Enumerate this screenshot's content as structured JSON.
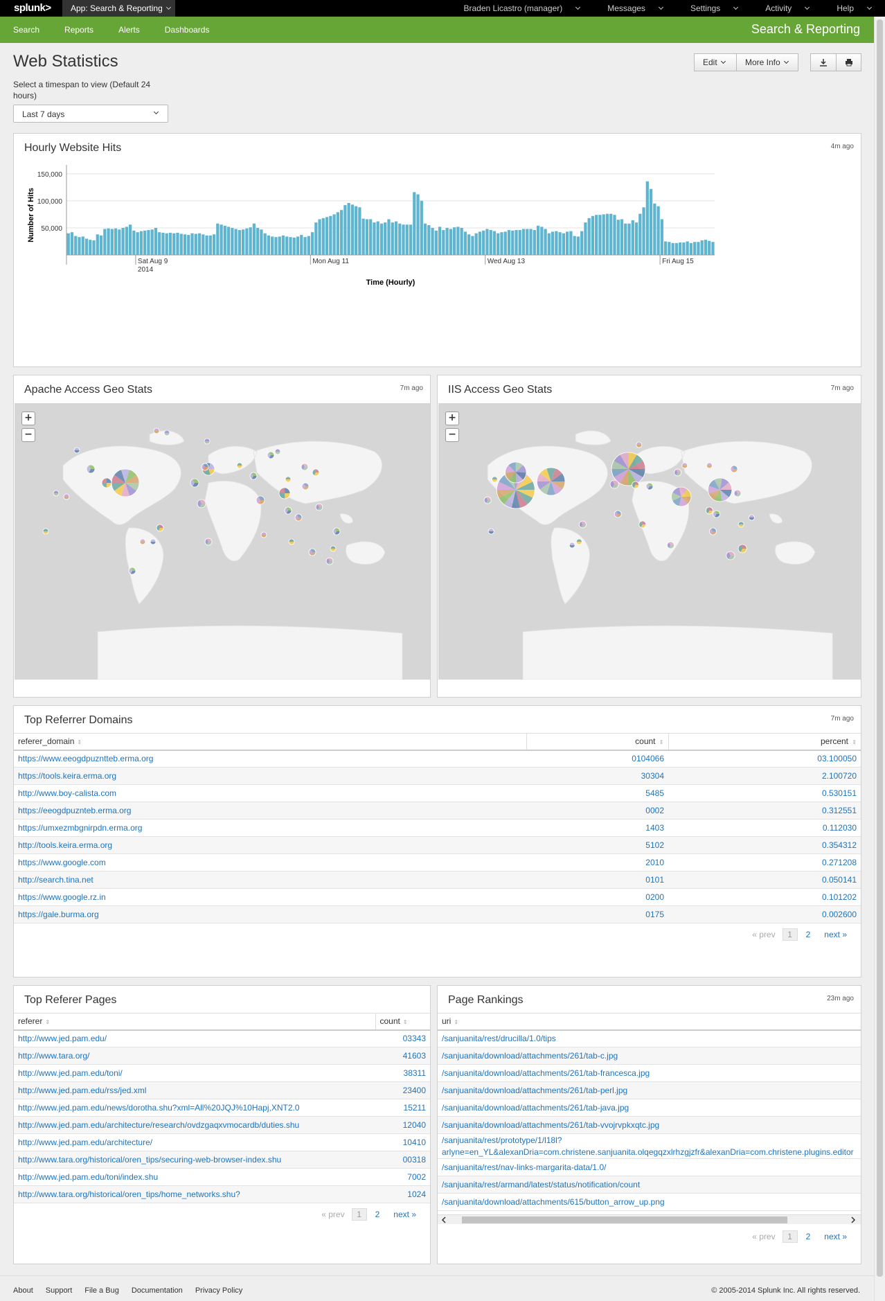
{
  "topbar": {
    "logo": "splunk>",
    "app": "App: Search & Reporting",
    "user": "Braden Licastro (manager)",
    "messages": "Messages",
    "settings": "Settings",
    "activity": "Activity",
    "help": "Help"
  },
  "appbar": {
    "nav": [
      "Search",
      "Reports",
      "Alerts",
      "Dashboards"
    ],
    "title": "Search & Reporting"
  },
  "page": {
    "title": "Web Statistics",
    "timespan_label": "Select a timespan to view (Default 24 hours)",
    "timespan_value": "Last 7 days",
    "edit": "Edit",
    "more_info": "More Info",
    "download_icon": "download-icon",
    "print_icon": "print-icon"
  },
  "hits_panel": {
    "title": "Hourly Website Hits",
    "ago": "4m ago"
  },
  "chart_data": {
    "type": "bar",
    "title": "Hourly Website Hits",
    "xlabel": "Time (Hourly)",
    "ylabel": "Number of Hits",
    "yticks": [
      "150,000",
      "100,000",
      "50,000"
    ],
    "ylim": [
      0,
      160000
    ],
    "xticks": [
      {
        "label": "Sat Aug 9",
        "sub": "2014",
        "index": 19
      },
      {
        "label": "Mon Aug 11",
        "sub": "",
        "index": 67
      },
      {
        "label": "Wed Aug 13",
        "sub": "",
        "index": 115
      },
      {
        "label": "Fri Aug 15",
        "sub": "",
        "index": 163
      }
    ],
    "values": [
      40000,
      42000,
      35000,
      33000,
      34000,
      30000,
      28000,
      27000,
      38000,
      36000,
      48000,
      49000,
      48000,
      49000,
      47000,
      50000,
      52000,
      56000,
      45000,
      42000,
      44000,
      45000,
      46000,
      47000,
      50000,
      42000,
      41000,
      40000,
      41000,
      40000,
      41000,
      39000,
      38000,
      37000,
      40000,
      39000,
      40000,
      38000,
      36000,
      36000,
      38000,
      58000,
      56000,
      54000,
      52000,
      50000,
      48000,
      46000,
      47000,
      49000,
      51000,
      58000,
      50000,
      47000,
      40000,
      36000,
      34000,
      33000,
      34000,
      36000,
      34000,
      33000,
      32000,
      34000,
      37000,
      33000,
      35000,
      42000,
      60000,
      66000,
      68000,
      70000,
      72000,
      75000,
      79000,
      83000,
      92000,
      96000,
      93000,
      90000,
      88000,
      67000,
      66000,
      66000,
      60000,
      62000,
      58000,
      60000,
      66000,
      60000,
      62000,
      58000,
      56000,
      56000,
      56000,
      116000,
      112000,
      100000,
      58000,
      55000,
      50000,
      45000,
      52000,
      46000,
      50000,
      48000,
      51000,
      52000,
      50000,
      43000,
      38000,
      35000,
      40000,
      43000,
      45000,
      48000,
      46000,
      44000,
      40000,
      42000,
      43000,
      46000,
      45000,
      46000,
      46000,
      48000,
      48000,
      48000,
      46000,
      54000,
      52000,
      48000,
      40000,
      43000,
      44000,
      42000,
      40000,
      43000,
      44000,
      35000,
      34000,
      44000,
      60000,
      68000,
      72000,
      74000,
      74000,
      75000,
      76000,
      76000,
      74000,
      65000,
      66000,
      58000,
      58000,
      64000,
      60000,
      76000,
      88000,
      136000,
      122000,
      95000,
      90000,
      66000,
      25000,
      24000,
      22000,
      22000,
      23000,
      23000,
      25000,
      22000,
      24000,
      24000,
      27000,
      28000,
      26000,
      24000
    ]
  },
  "apache_panel": {
    "title": "Apache Access Geo Stats",
    "ago": "7m ago"
  },
  "iis_panel": {
    "title": "IIS Access Geo Stats",
    "ago": "7m ago"
  },
  "referrer_domains": {
    "title": "Top Referrer Domains",
    "ago": "7m ago",
    "cols": [
      "referer_domain",
      "count",
      "percent"
    ],
    "rows": [
      [
        "https://www.eeogdpuzntteb.erma.org",
        "0104066",
        "03.100050"
      ],
      [
        "https://tools.keira.erma.org",
        "30304",
        "2.100720"
      ],
      [
        "http://www.boy-calista.com",
        "5485",
        "0.530151"
      ],
      [
        "https://eeogdpuznteb.erma.org",
        "0002",
        "0.312551"
      ],
      [
        "https://umxezmbgnirpdn.erma.org",
        "1403",
        "0.112030"
      ],
      [
        "http://tools.keira.erma.org",
        "5102",
        "0.354312"
      ],
      [
        "https://www.google.com",
        "2010",
        "0.271208"
      ],
      [
        "http://search.tina.net",
        "0101",
        "0.050141"
      ],
      [
        "https://www.google.rz.in",
        "0200",
        "0.101202"
      ],
      [
        "https://gale.burma.org",
        "0175",
        "0.002600"
      ]
    ],
    "pager": {
      "prev": "« prev",
      "cur": "1",
      "p2": "2",
      "next": "next »"
    }
  },
  "referer_pages": {
    "title": "Top Referer Pages",
    "cols": [
      "referer",
      "count"
    ],
    "rows": [
      [
        "http://www.jed.pam.edu/",
        "03343"
      ],
      [
        "http://www.tara.org/",
        "41603"
      ],
      [
        "http://www.jed.pam.edu/toni/",
        "38311"
      ],
      [
        "http://www.jed.pam.edu/rss/jed.xml",
        "23400"
      ],
      [
        "http://www.jed.pam.edu/news/dorotha.shu?xml=All%20JQJ%10Hapj,XNT2.0",
        "15211"
      ],
      [
        "http://www.jed.pam.edu/architecture/research/ovdzgaqxvmocardb/duties.shu",
        "12040"
      ],
      [
        "http://www.jed.pam.edu/architecture/",
        "10410"
      ],
      [
        "http://www.tara.org/historical/oren_tips/securing-web-browser-index.shu",
        "00318"
      ],
      [
        "http://www.jed.pam.edu/toni/index.shu",
        "7002"
      ],
      [
        "http://www.tara.org/historical/oren_tips/home_networks.shu?",
        "1024"
      ]
    ],
    "pager": {
      "prev": "« prev",
      "cur": "1",
      "p2": "2",
      "next": "next »"
    }
  },
  "page_rankings": {
    "title": "Page Rankings",
    "ago": "23m ago",
    "cols": [
      "uri"
    ],
    "rows": [
      "/sanjuanita/rest/drucilla/1.0/tips",
      "/sanjuanita/download/attachments/261/tab-c.jpg",
      "/sanjuanita/download/attachments/261/tab-francesca.jpg",
      "/sanjuanita/download/attachments/261/tab-perl.jpg",
      "/sanjuanita/download/attachments/261/tab-java.jpg",
      "/sanjuanita/download/attachments/261/tab-vvojrvpkxqtc.jpg",
      "/sanjuanita/rest/prototype/1/l18l?",
      "arlyne=en_YL&alexanDria=com.christene.sanjuanita.olqegqzxlrhzgjzfr&alexanDria=com.christene.plugins.editor",
      "/sanjuanita/rest/nav-links-margarita-data/1.0/",
      "/sanjuanita/rest/armand/latest/status/notification/count",
      "/sanjuanita/download/attachments/615/button_arrow_up.png"
    ],
    "pager": {
      "prev": "« prev",
      "cur": "1",
      "p2": "2",
      "next": "next »"
    }
  },
  "footer": {
    "links": [
      "About",
      "Support",
      "File a Bug",
      "Documentation",
      "Privacy Policy"
    ],
    "copyright": "© 2005-2014 Splunk Inc. All rights reserved."
  },
  "colors": {
    "accent": "#65a637",
    "bar": "#5fb5cf",
    "link": "#1e73be",
    "ocean": "#d6d6d6",
    "land": "#f2f2f2"
  }
}
